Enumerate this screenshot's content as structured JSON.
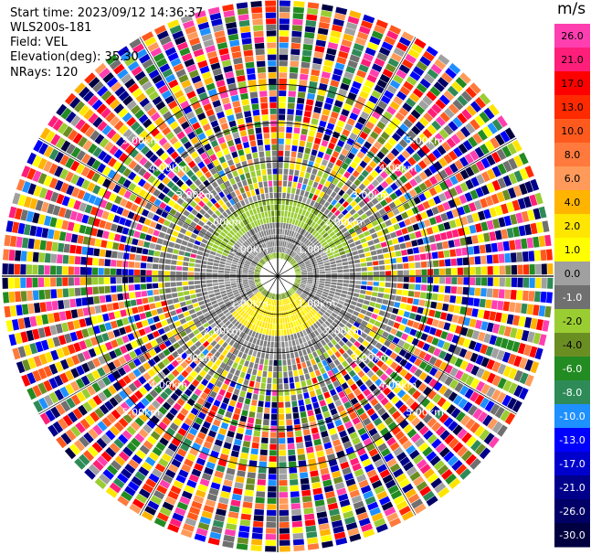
{
  "header": {
    "start_time": "Start time: 2023/09/12 14:36:37",
    "instrument": "WLS200s-181",
    "field": "Field: VEL",
    "elevation": "Elevation(deg): 35.30",
    "nrays": "NRays: 120"
  },
  "colorbar": {
    "unit": "m/s",
    "ticks": [
      "26.0",
      "21.0",
      "17.0",
      "13.0",
      "10.0",
      "8.0",
      "6.0",
      "4.0",
      "2.0",
      "1.0",
      "0.0",
      "-1.0",
      "-2.0",
      "-4.0",
      "-6.0",
      "-8.0",
      "-10.0",
      "-13.0",
      "-17.0",
      "-21.0",
      "-26.0",
      "-30.0"
    ],
    "colors": [
      "#ff3fb0",
      "#ff1e7a",
      "#ff0000",
      "#ff2a00",
      "#ff5a1e",
      "#ff7a3c",
      "#ff9a5a",
      "#ffb400",
      "#ffe600",
      "#ffff00",
      "#a0a0a0",
      "#707070",
      "#9acd32",
      "#6b8e23",
      "#228b22",
      "#2e8b57",
      "#1e90ff",
      "#0000ff",
      "#0000cd",
      "#00008b",
      "#000066",
      "#000040"
    ]
  },
  "chart_data": {
    "type": "ppi",
    "field": "VEL",
    "elevation_deg": 35.3,
    "nrays": 120,
    "range_ring_labels": [
      "1.00km",
      "2.00km",
      "3.00km",
      "4.00km",
      "5.00km"
    ],
    "range_rings_km": [
      1,
      2,
      3,
      4,
      5
    ],
    "max_range_km": 7.2,
    "velocity_min": -30,
    "velocity_max": 30
  }
}
